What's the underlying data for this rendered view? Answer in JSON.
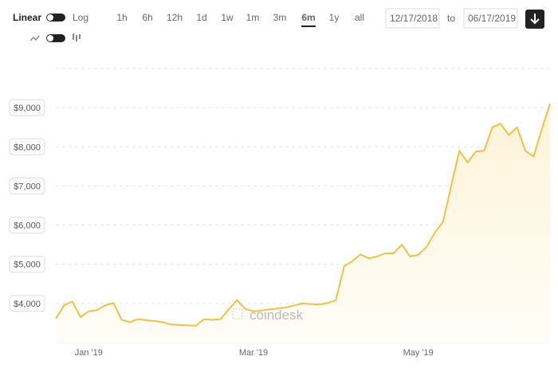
{
  "controls": {
    "scale_left": "Linear",
    "scale_right": "Log",
    "ranges": [
      "1h",
      "6h",
      "12h",
      "1d",
      "1w",
      "1m",
      "3m",
      "6m",
      "1y",
      "all"
    ],
    "selected_range": 7,
    "date_from": "12/17/2018",
    "date_to_word": "to",
    "date_to": "06/17/2019",
    "watermark": "coindesk"
  },
  "chart_data": {
    "type": "area",
    "categories": [
      null,
      null,
      null,
      null,
      "Jan '19",
      null,
      null,
      null,
      null,
      null,
      null,
      null,
      null,
      null,
      null,
      null,
      null,
      null,
      null,
      null,
      null,
      null,
      null,
      null,
      "Mar '19",
      null,
      null,
      null,
      null,
      null,
      null,
      null,
      null,
      null,
      null,
      null,
      null,
      null,
      null,
      null,
      null,
      null,
      null,
      null,
      "May '19",
      null,
      null,
      null,
      null,
      null,
      null,
      null,
      null,
      null,
      null,
      null,
      null,
      null,
      null,
      null,
      null
    ],
    "values": [
      3610,
      3950,
      4050,
      3650,
      3800,
      3830,
      3950,
      4010,
      3580,
      3520,
      3600,
      3570,
      3550,
      3520,
      3460,
      3450,
      3440,
      3430,
      3600,
      3580,
      3600,
      3850,
      4080,
      3860,
      3800,
      3820,
      3850,
      3870,
      3900,
      3950,
      4000,
      3980,
      3970,
      4010,
      4080,
      4950,
      5080,
      5250,
      5150,
      5200,
      5280,
      5280,
      5500,
      5200,
      5240,
      5440,
      5800,
      6080,
      7000,
      7900,
      7600,
      7880,
      7900,
      8500,
      8590,
      8300,
      8500,
      7900,
      7750,
      8450,
      9100
    ],
    "color": "#f2c143",
    "ylim": [
      3000,
      10000
    ],
    "yticks": [
      {
        "value": 4000,
        "label": "$4,000"
      },
      {
        "value": 5000,
        "label": "$5,000"
      },
      {
        "value": 6000,
        "label": "$6,000"
      },
      {
        "value": 7000,
        "label": "$7,000"
      },
      {
        "value": 8000,
        "label": "$8,000"
      },
      {
        "value": 9000,
        "label": "$9,000"
      }
    ],
    "grid": true
  }
}
